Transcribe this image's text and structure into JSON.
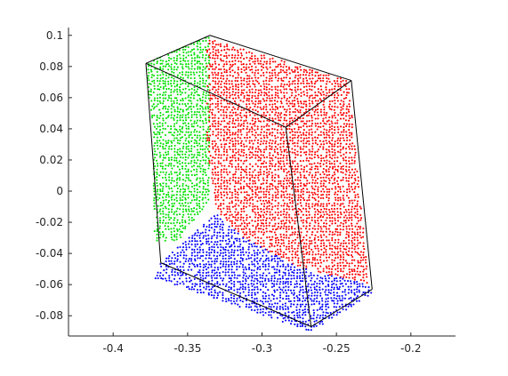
{
  "chart_data": {
    "type": "scatter",
    "title": "",
    "xlabel": "",
    "ylabel": "",
    "xlim": [
      -0.43,
      -0.17
    ],
    "ylim": [
      -0.093,
      0.105
    ],
    "x_ticks": [
      {
        "value": -0.4,
        "label": "-0.4"
      },
      {
        "value": -0.35,
        "label": "-0.35"
      },
      {
        "value": -0.3,
        "label": "-0.3"
      },
      {
        "value": -0.25,
        "label": "-0.25"
      },
      {
        "value": -0.2,
        "label": "-0.2"
      }
    ],
    "y_ticks": [
      {
        "value": 0.1,
        "label": "0.1"
      },
      {
        "value": 0.08,
        "label": "0.08"
      },
      {
        "value": 0.06,
        "label": "0.06"
      },
      {
        "value": 0.04,
        "label": "0.04"
      },
      {
        "value": 0.02,
        "label": "0.02"
      },
      {
        "value": 0,
        "label": "0"
      },
      {
        "value": -0.02,
        "label": "-0.02"
      },
      {
        "value": -0.04,
        "label": "-0.04"
      },
      {
        "value": -0.06,
        "label": "-0.06"
      },
      {
        "value": -0.08,
        "label": "-0.08"
      }
    ],
    "grid": false,
    "legend": "none",
    "bounding_box_vertices": [
      [
        -0.378,
        0.082
      ],
      [
        -0.335,
        0.1
      ],
      [
        -0.24,
        0.071
      ],
      [
        -0.284,
        0.041
      ],
      [
        -0.368,
        -0.046
      ],
      [
        -0.226,
        -0.063
      ],
      [
        -0.267,
        -0.087
      ],
      [
        -0.31,
        -0.056
      ]
    ],
    "bounding_box_edges": [
      [
        0,
        1
      ],
      [
        1,
        2
      ],
      [
        2,
        3
      ],
      [
        3,
        0
      ],
      [
        0,
        4
      ],
      [
        3,
        6
      ],
      [
        2,
        5
      ],
      [
        4,
        6
      ],
      [
        6,
        5
      ]
    ],
    "series": [
      {
        "color": "#00e000",
        "region": [
          [
            -0.378,
            0.082
          ],
          [
            -0.335,
            0.1
          ],
          [
            -0.335,
            -0.005
          ],
          [
            -0.356,
            -0.032
          ],
          [
            -0.372,
            -0.032
          ],
          [
            -0.374,
            0.04
          ]
        ]
      },
      {
        "color": "#ff0000",
        "region": [
          [
            -0.337,
            0.098
          ],
          [
            -0.242,
            0.071
          ],
          [
            -0.228,
            -0.06
          ],
          [
            -0.275,
            -0.049
          ],
          [
            -0.312,
            -0.03
          ],
          [
            -0.331,
            -0.012
          ],
          [
            -0.337,
            0.03
          ]
        ]
      },
      {
        "color": "#0000ff",
        "region": [
          [
            -0.368,
            -0.046
          ],
          [
            -0.331,
            -0.014
          ],
          [
            -0.312,
            -0.03
          ],
          [
            -0.275,
            -0.049
          ],
          [
            -0.228,
            -0.06
          ],
          [
            -0.226,
            -0.066
          ],
          [
            -0.267,
            -0.09
          ],
          [
            -0.372,
            -0.056
          ]
        ]
      }
    ]
  }
}
